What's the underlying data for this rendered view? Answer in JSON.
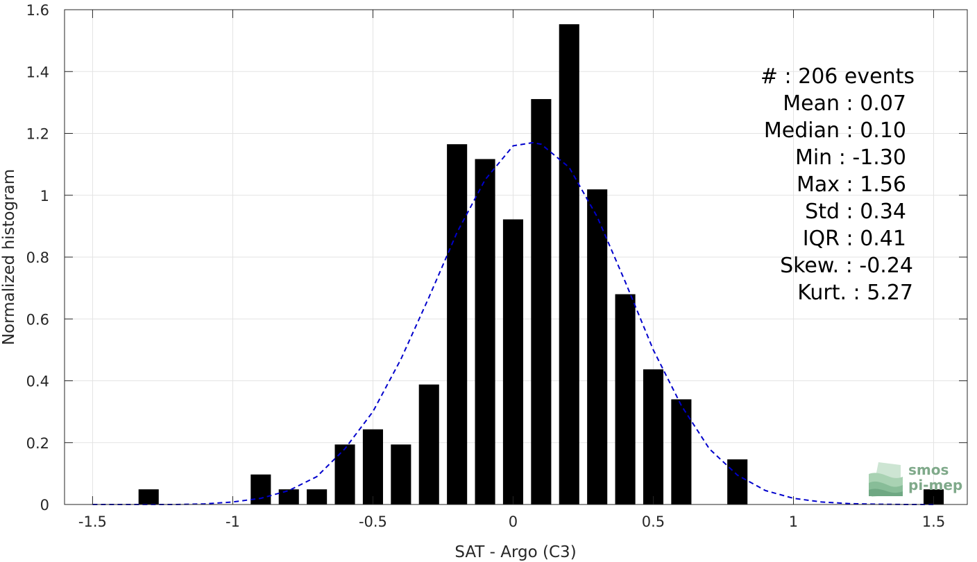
{
  "chart_data": {
    "type": "bar",
    "xlabel": "SAT - Argo (C3)",
    "ylabel": "Normalized histogram",
    "xlim": [
      -1.5,
      1.5
    ],
    "ylim": [
      0,
      1.6
    ],
    "xticks": [
      "-1.5",
      "-1",
      "-0.5",
      "0",
      "0.5",
      "1",
      "1.5"
    ],
    "xtick_values": [
      -1.5,
      -1,
      -0.5,
      0,
      0.5,
      1,
      1.5
    ],
    "yticks": [
      "0",
      "0.2",
      "0.4",
      "0.6",
      "0.8",
      "1",
      "1.2",
      "1.4",
      "1.6"
    ],
    "ytick_values": [
      0,
      0.2,
      0.4,
      0.6,
      0.8,
      1,
      1.2,
      1.4,
      1.6
    ],
    "grid": true,
    "bar_color": "#000000",
    "bars": {
      "x": [
        -1.3,
        -0.9,
        -0.8,
        -0.7,
        -0.6,
        -0.5,
        -0.4,
        -0.3,
        -0.2,
        -0.1,
        0.0,
        0.1,
        0.2,
        0.3,
        0.4,
        0.5,
        0.6,
        0.8,
        1.5
      ],
      "values": [
        0.049,
        0.097,
        0.049,
        0.049,
        0.194,
        0.243,
        0.194,
        0.388,
        1.165,
        1.117,
        0.922,
        1.311,
        1.553,
        1.019,
        0.68,
        0.437,
        0.34,
        0.146,
        0.049
      ]
    },
    "fit": {
      "type": "gaussian",
      "color": "#0000cc",
      "line_style": "dashed",
      "x": [
        -1.5,
        -1.4,
        -1.3,
        -1.2,
        -1.1,
        -1.0,
        -0.9,
        -0.8,
        -0.7,
        -0.6,
        -0.5,
        -0.4,
        -0.3,
        -0.2,
        -0.1,
        0.0,
        0.07,
        0.1,
        0.2,
        0.3,
        0.4,
        0.5,
        0.6,
        0.7,
        0.8,
        0.9,
        1.0,
        1.1,
        1.2,
        1.3,
        1.4,
        1.5
      ],
      "y": [
        0.0,
        0.0,
        0.0,
        0.0,
        0.002,
        0.008,
        0.02,
        0.045,
        0.09,
        0.18,
        0.3,
        0.47,
        0.67,
        0.88,
        1.05,
        1.16,
        1.17,
        1.165,
        1.09,
        0.93,
        0.72,
        0.5,
        0.32,
        0.18,
        0.095,
        0.045,
        0.02,
        0.008,
        0.003,
        0.001,
        0.0,
        0.0
      ]
    },
    "stats": [
      "#  : 206 events",
      "Mean : 0.07",
      "Median : 0.10",
      "Min : -1.30",
      "Max : 1.56",
      "Std : 0.34",
      "IQR : 0.41",
      "Skew. : -0.24",
      "Kurt. : 5.27"
    ]
  },
  "logo": {
    "line1": "smos",
    "line2": "pi-mep",
    "color": "#7fa98a"
  }
}
